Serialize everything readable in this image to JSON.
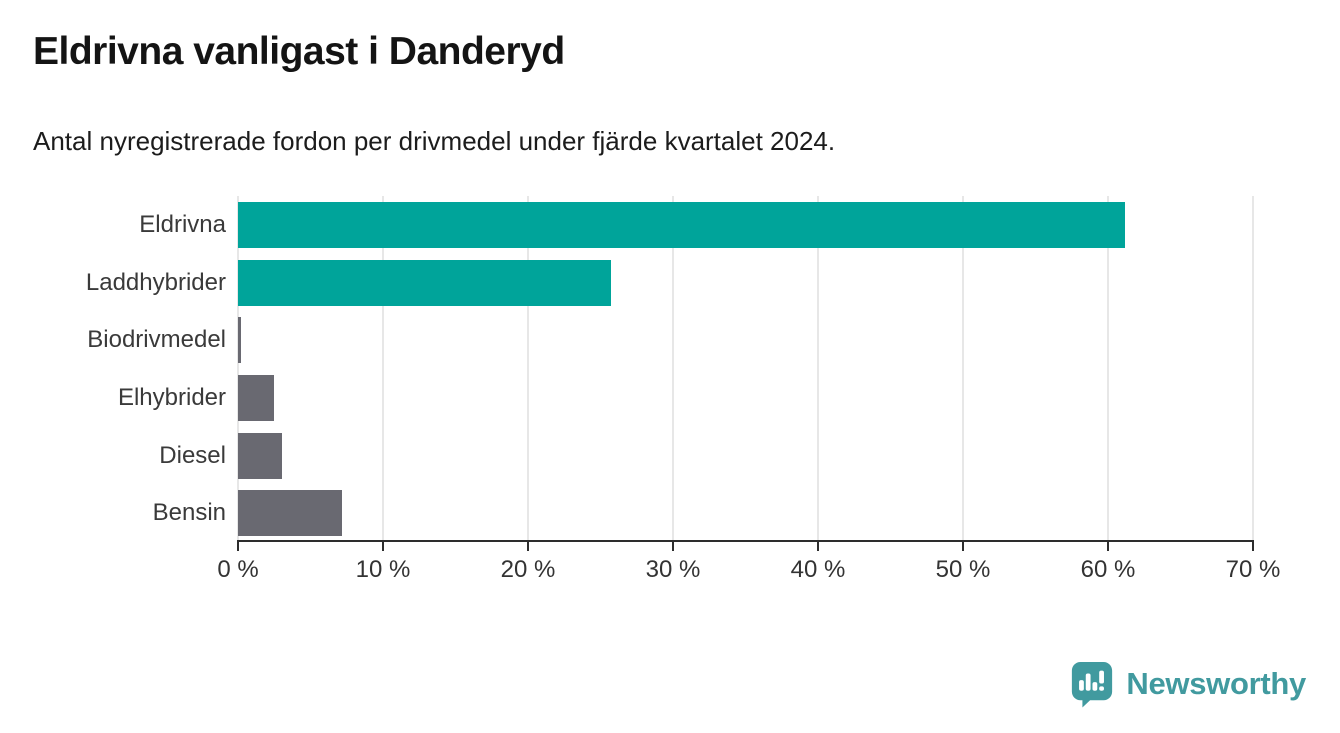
{
  "title": "Eldrivna vanligast i Danderyd",
  "subtitle": "Antal nyregistrerade fordon per drivmedel under fjärde kvartalet 2024.",
  "colors": {
    "bar_teal": "#00a49a",
    "bar_gray": "#696971",
    "axis": "#2d2d2d",
    "grid": "#e7e7e7",
    "logo_teal": "#419a9f"
  },
  "chart_data": {
    "type": "bar",
    "orientation": "horizontal",
    "title": "Eldrivna vanligast i Danderyd",
    "subtitle": "Antal nyregistrerade fordon per drivmedel under fjärde kvartalet 2024.",
    "categories": [
      "Eldrivna",
      "Laddhybrider",
      "Biodrivmedel",
      "Elhybrider",
      "Diesel",
      "Bensin"
    ],
    "values": [
      61.2,
      25.7,
      0.2,
      2.5,
      3.0,
      7.2
    ],
    "bar_colors": [
      "#00a49a",
      "#00a49a",
      "#696971",
      "#696971",
      "#696971",
      "#696971"
    ],
    "xlabel": "",
    "ylabel": "",
    "xlim": [
      0,
      70
    ],
    "x_ticks": [
      0,
      10,
      20,
      30,
      40,
      50,
      60,
      70
    ],
    "x_tick_labels": [
      "0 %",
      "10 %",
      "20 %",
      "30 %",
      "40 %",
      "50 %",
      "60 %",
      "70 %"
    ],
    "grid": true,
    "legend_position": "none"
  },
  "footer": {
    "brand": "Newsworthy",
    "icon": "bar-chart-speech-bubble-icon"
  }
}
